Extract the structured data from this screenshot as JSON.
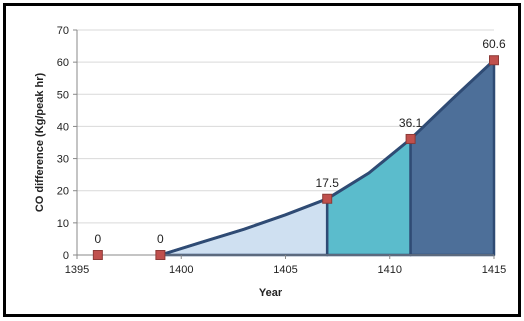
{
  "chart_data": {
    "type": "area",
    "xlabel": "Year",
    "ylabel": "CO difference (Kg/peak hr)",
    "xlim": [
      1395,
      1415
    ],
    "ylim": [
      0,
      70
    ],
    "xticks": [
      1395,
      1400,
      1405,
      1410,
      1415
    ],
    "yticks": [
      0,
      10,
      20,
      30,
      40,
      50,
      60,
      70
    ],
    "grid": "horizontal",
    "points": [
      {
        "x": 1396,
        "y": 0,
        "label": "0"
      },
      {
        "x": 1399,
        "y": 0,
        "label": "0"
      },
      {
        "x": 1407,
        "y": 17.5,
        "label": "17.5"
      },
      {
        "x": 1411,
        "y": 36.1,
        "label": "36.1"
      },
      {
        "x": 1415,
        "y": 60.6,
        "label": "60.6"
      }
    ],
    "curve": [
      {
        "x": 1399,
        "y": 0
      },
      {
        "x": 1401,
        "y": 4
      },
      {
        "x": 1403,
        "y": 8
      },
      {
        "x": 1405,
        "y": 12.5
      },
      {
        "x": 1407,
        "y": 17.5
      },
      {
        "x": 1409,
        "y": 25.5
      },
      {
        "x": 1411,
        "y": 36.1
      },
      {
        "x": 1413,
        "y": 48.5
      },
      {
        "x": 1415,
        "y": 60.6
      }
    ],
    "segments": [
      {
        "from": 1399,
        "to": 1407,
        "color": "#cfe0f1"
      },
      {
        "from": 1407,
        "to": 1411,
        "color": "#5bbccc"
      },
      {
        "from": 1411,
        "to": 1415,
        "color": "#4d6f99"
      }
    ],
    "line_color": "#2f4b74",
    "marker_color": "#c0504d"
  }
}
